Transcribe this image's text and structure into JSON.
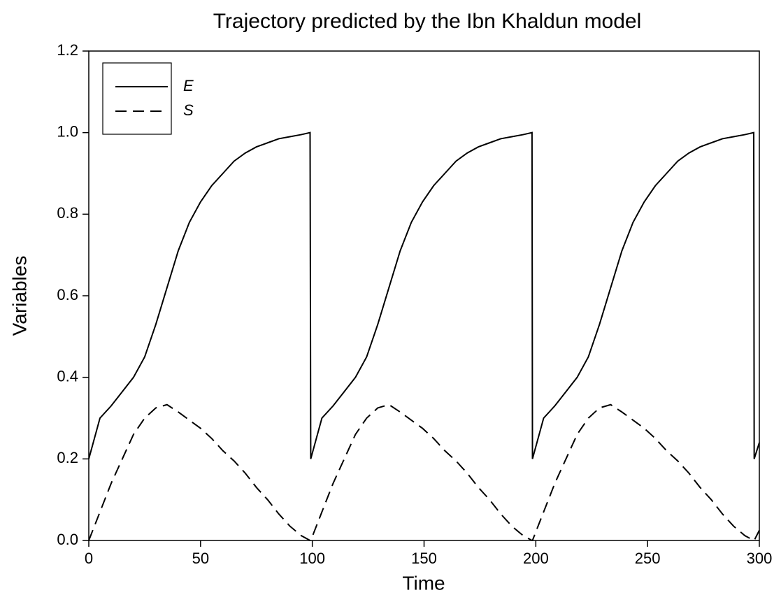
{
  "chart_data": {
    "type": "line",
    "title": "Trajectory predicted by the Ibn Khaldun model",
    "x_label": "Time",
    "y_label": "Variables",
    "x": [
      0,
      5,
      10,
      15,
      20,
      25,
      30,
      35,
      40,
      45,
      50,
      55,
      60,
      65,
      70,
      75,
      80,
      85,
      90,
      95,
      99,
      99.3,
      104.3,
      109.3,
      114.3,
      119.3,
      124.3,
      129.3,
      134.3,
      139.3,
      144.3,
      149.3,
      154.3,
      159.3,
      164.3,
      169.3,
      174.3,
      179.3,
      184.3,
      189.3,
      194.3,
      198.3,
      198.5,
      203.5,
      208.5,
      213.5,
      218.5,
      223.5,
      228.5,
      233.5,
      238.5,
      243.5,
      248.5,
      253.5,
      258.5,
      263.5,
      268.5,
      273.5,
      278.5,
      283.5,
      288.5,
      293.5,
      297.5,
      297.7,
      300
    ],
    "series": [
      {
        "name": "E",
        "color": "#000000",
        "line_style": "solid",
        "values": [
          0.2,
          0.3,
          0.33,
          0.365,
          0.4,
          0.45,
          0.53,
          0.62,
          0.71,
          0.78,
          0.83,
          0.87,
          0.9,
          0.93,
          0.95,
          0.965,
          0.975,
          0.985,
          0.99,
          0.995,
          1.0,
          0.2,
          0.3,
          0.33,
          0.365,
          0.4,
          0.45,
          0.53,
          0.62,
          0.71,
          0.78,
          0.83,
          0.87,
          0.9,
          0.93,
          0.95,
          0.965,
          0.975,
          0.985,
          0.99,
          0.995,
          1.0,
          0.2,
          0.3,
          0.33,
          0.365,
          0.4,
          0.45,
          0.53,
          0.62,
          0.71,
          0.78,
          0.83,
          0.87,
          0.9,
          0.93,
          0.95,
          0.965,
          0.975,
          0.985,
          0.99,
          0.995,
          1.0,
          0.2,
          0.24
        ]
      },
      {
        "name": "S",
        "color": "#000000",
        "line_style": "dashed",
        "values": [
          0,
          0.07,
          0.14,
          0.2,
          0.26,
          0.3,
          0.325,
          0.333,
          0.315,
          0.295,
          0.275,
          0.25,
          0.22,
          0.195,
          0.165,
          0.13,
          0.1,
          0.065,
          0.035,
          0.012,
          0,
          0,
          0.07,
          0.14,
          0.2,
          0.26,
          0.3,
          0.325,
          0.333,
          0.315,
          0.295,
          0.275,
          0.25,
          0.22,
          0.195,
          0.165,
          0.13,
          0.1,
          0.065,
          0.035,
          0.012,
          0,
          0,
          0.07,
          0.14,
          0.2,
          0.26,
          0.3,
          0.325,
          0.333,
          0.315,
          0.295,
          0.275,
          0.25,
          0.22,
          0.195,
          0.165,
          0.13,
          0.1,
          0.065,
          0.035,
          0.012,
          0,
          0,
          0.025
        ]
      }
    ],
    "xlim": [
      0,
      300
    ],
    "xticks": [
      0,
      50,
      100,
      150,
      200,
      250,
      300
    ],
    "ylim": [
      0,
      1.2
    ],
    "yticks": [
      {
        "value": 0,
        "label": "0.0"
      },
      0.2,
      0.4,
      0.6,
      0.8,
      {
        "value": 1,
        "label": "1.0"
      },
      1.2
    ],
    "grid": false,
    "legend": "upper left"
  }
}
